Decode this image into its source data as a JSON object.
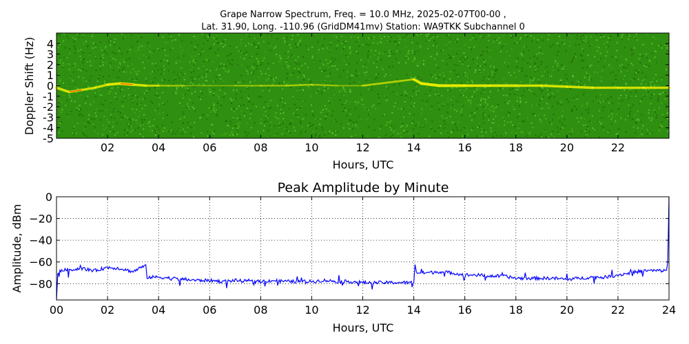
{
  "figure": {
    "title_line1": "Grape Narrow Spectrum, Freq. = 10.0 MHz, 2025-02-07T00-00 ,",
    "title_line2": "Lat.  31.90, Long. -110.96 (GridDM41mv) Station: WA9TKK Subchannel 0"
  },
  "chart_data": [
    {
      "type": "heatmap",
      "title": "",
      "xlabel": "Hours, UTC",
      "ylabel": "Doppler Shift (Hz)",
      "xlim": [
        0,
        24
      ],
      "ylim": [
        -5,
        5
      ],
      "x_ticks": [
        "02",
        "04",
        "06",
        "08",
        "10",
        "12",
        "14",
        "16",
        "18",
        "20",
        "22"
      ],
      "x_tick_values": [
        2,
        4,
        6,
        8,
        10,
        12,
        14,
        16,
        18,
        20,
        22
      ],
      "y_ticks": [
        "4",
        "3",
        "2",
        "1",
        "0",
        "-1",
        "-2",
        "-3",
        "-4",
        "-5"
      ],
      "y_tick_values": [
        4,
        3,
        2,
        1,
        0,
        -1,
        -2,
        -3,
        -4,
        -5
      ],
      "colors": {
        "background": "#2f8f10",
        "trace": "#f0f000",
        "peak": "#ff2200"
      },
      "trace": {
        "x": [
          0.0,
          0.5,
          1.0,
          1.5,
          2.0,
          2.5,
          3.0,
          3.5,
          4.0,
          5.0,
          6.0,
          7.0,
          8.0,
          9.0,
          10.0,
          11.0,
          12.0,
          14.0,
          14.3,
          15.0,
          16.0,
          17.0,
          18.0,
          19.0,
          20.0,
          21.0,
          22.0,
          23.0,
          24.0
        ],
        "y": [
          -0.2,
          -0.6,
          -0.4,
          -0.2,
          0.1,
          0.2,
          0.1,
          0.0,
          0.0,
          0.0,
          0.0,
          0.0,
          0.0,
          0.0,
          0.1,
          0.0,
          0.0,
          0.6,
          0.2,
          0.0,
          0.0,
          0.0,
          0.0,
          0.0,
          -0.1,
          -0.2,
          -0.2,
          -0.2,
          -0.2
        ],
        "strength": [
          0.9,
          0.8,
          0.8,
          0.7,
          0.9,
          1.0,
          1.0,
          0.7,
          0.6,
          0.3,
          0.1,
          0.3,
          0.4,
          0.4,
          0.5,
          0.3,
          0.2,
          0.9,
          1.0,
          1.0,
          1.0,
          0.9,
          0.9,
          0.8,
          0.9,
          0.8,
          0.8,
          0.8,
          0.8
        ]
      }
    },
    {
      "type": "line",
      "title": "Peak Amplitude by Minute",
      "xlabel": "Hours, UTC",
      "ylabel": "Amplitude, dBm",
      "xlim": [
        0,
        24
      ],
      "ylim": [
        -95,
        0
      ],
      "grid": true,
      "x_ticks": [
        "00",
        "02",
        "04",
        "06",
        "08",
        "10",
        "12",
        "14",
        "16",
        "18",
        "20",
        "22",
        "24"
      ],
      "x_tick_values": [
        0,
        2,
        4,
        6,
        8,
        10,
        12,
        14,
        16,
        18,
        20,
        22,
        24
      ],
      "y_ticks": [
        "0",
        "−20",
        "−40",
        "−60",
        "−80"
      ],
      "y_tick_values": [
        0,
        -20,
        -40,
        -60,
        -80
      ],
      "line_color": "#0000ff",
      "series": [
        {
          "x": [
            0,
            0.05,
            0.1,
            0.5,
            1.0,
            1.5,
            2.0,
            2.5,
            3.0,
            3.3,
            3.5,
            3.55,
            4.0,
            4.5,
            5.0,
            5.5,
            6.0,
            6.5,
            7.0,
            7.5,
            8.0,
            8.5,
            9.0,
            9.5,
            10.0,
            10.5,
            11.0,
            11.5,
            12.0,
            12.5,
            13.0,
            13.5,
            14.0,
            14.05,
            14.1,
            14.5,
            15.0,
            15.5,
            16.0,
            16.5,
            17.0,
            17.5,
            18.0,
            18.5,
            19.0,
            19.5,
            20.0,
            20.5,
            21.0,
            21.5,
            22.0,
            22.5,
            23.0,
            23.5,
            23.9,
            23.95,
            24.0
          ],
          "y": [
            -95,
            -70,
            -68,
            -67,
            -66,
            -68,
            -65,
            -66,
            -69,
            -65,
            -64,
            -74,
            -74,
            -75,
            -76,
            -77,
            -77,
            -78,
            -77,
            -78,
            -78,
            -77,
            -78,
            -78,
            -78,
            -77,
            -78,
            -78,
            -79,
            -79,
            -79,
            -79,
            -79,
            -62,
            -70,
            -70,
            -69,
            -70,
            -72,
            -72,
            -73,
            -73,
            -75,
            -75,
            -75,
            -75,
            -76,
            -75,
            -74,
            -74,
            -72,
            -70,
            -68,
            -68,
            -68,
            -60,
            0
          ]
        }
      ]
    }
  ]
}
